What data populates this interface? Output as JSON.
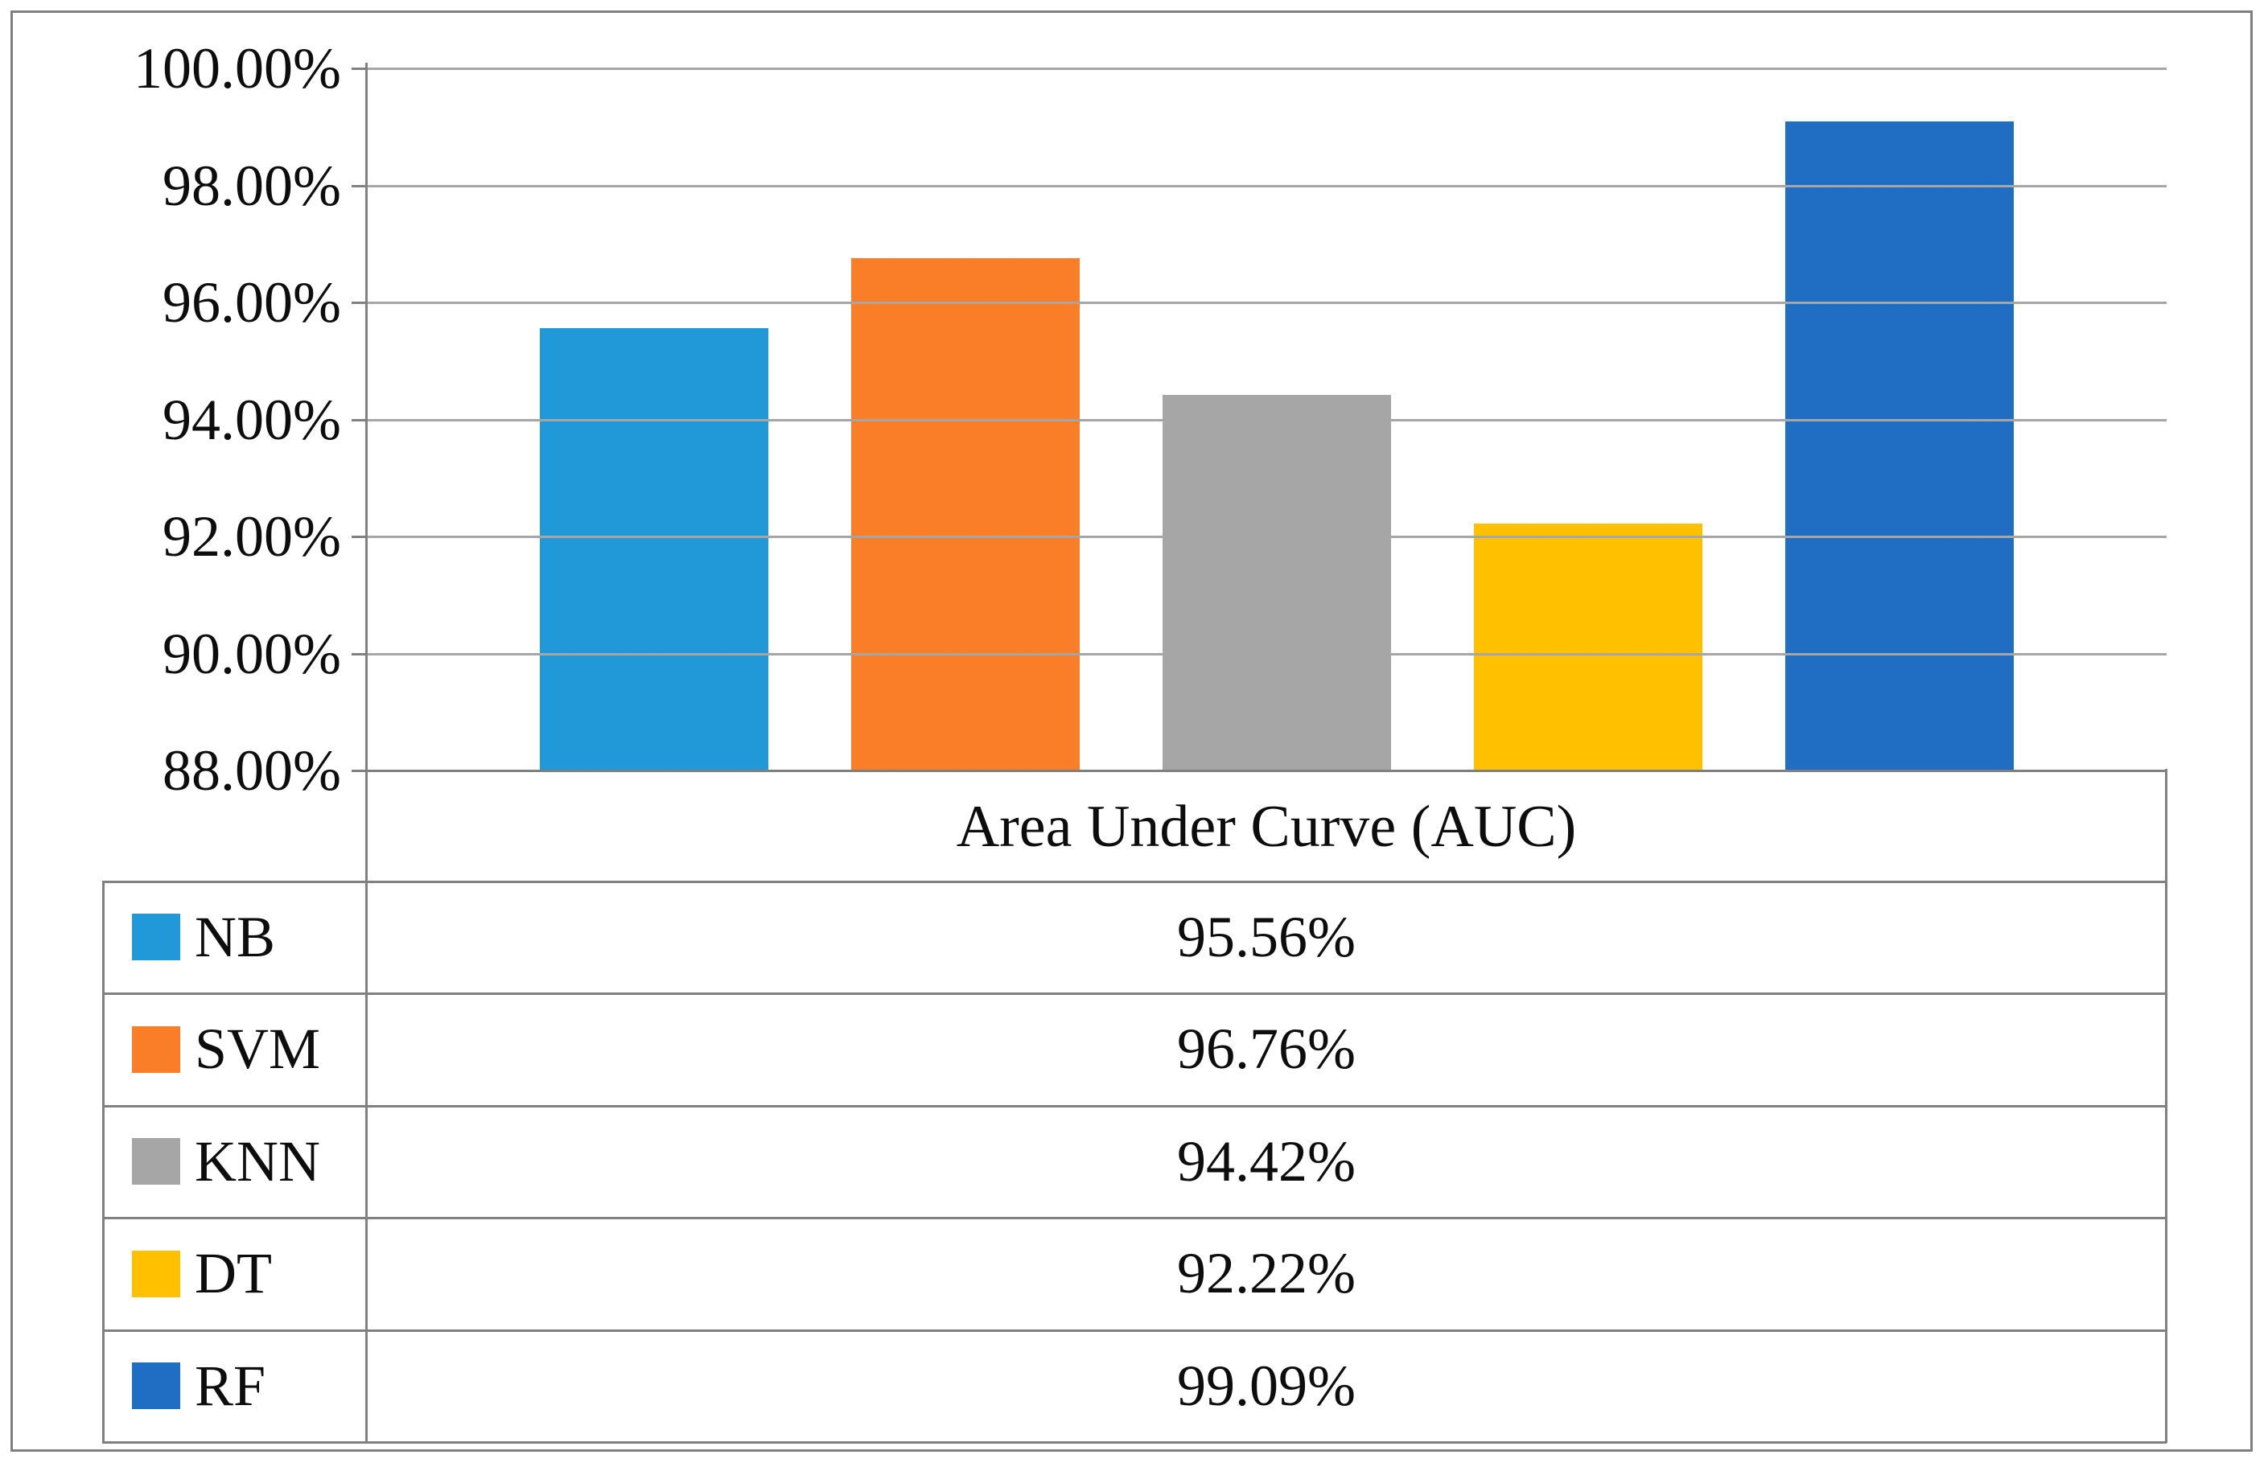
{
  "chart_data": {
    "type": "bar",
    "title": "",
    "xlabel": "Area Under Curve (AUC)",
    "ylabel": "",
    "categories": [
      "NB",
      "SVM",
      "KNN",
      "DT",
      "RF"
    ],
    "values": [
      95.56,
      96.76,
      94.42,
      92.22,
      99.09
    ],
    "value_labels": [
      "95.56%",
      "96.76%",
      "94.42%",
      "92.22%",
      "99.09%"
    ],
    "series_colors": [
      "#2199d8",
      "#fa7d28",
      "#a6a6a6",
      "#ffc000",
      "#1f6ec4"
    ],
    "ylim": [
      88,
      100
    ],
    "ytick_step": 2,
    "ytick_labels": [
      "100.00%",
      "98.00%",
      "96.00%",
      "94.00%",
      "92.00%",
      "90.00%",
      "88.00%"
    ],
    "grid": true,
    "legend_position": "data-table-below-chart"
  },
  "colors": {
    "axis_line": "#808080",
    "gridline": "#a6a6a6",
    "outer_border": "#7f7f7f",
    "text": "#0d0d0d",
    "background": "#ffffff"
  }
}
